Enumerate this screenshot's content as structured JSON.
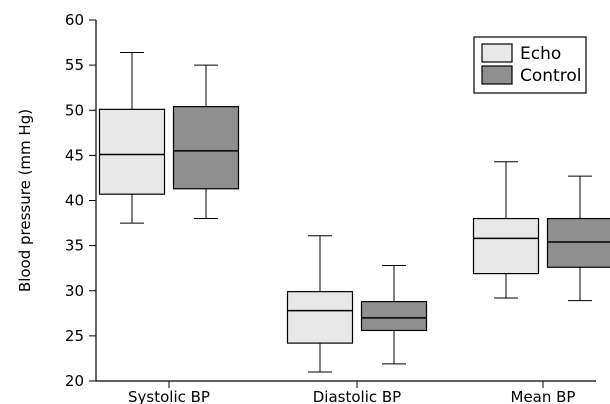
{
  "chart_data": {
    "type": "boxplot",
    "title": "",
    "xlabel": "",
    "ylabel": "Blood pressure (mm Hg)",
    "ylim": [
      20,
      60
    ],
    "yticks": [
      20,
      25,
      30,
      35,
      40,
      45,
      50,
      55,
      60
    ],
    "categories": [
      "Systolic BP",
      "Diastolic BP",
      "Mean BP"
    ],
    "legend_position": "top-right",
    "grid": false,
    "series": [
      {
        "name": "Echo",
        "color": "#e8e8e8",
        "boxes": [
          {
            "min": 37.5,
            "q1": 40.7,
            "median": 45.1,
            "q3": 50.1,
            "max": 56.4
          },
          {
            "min": 21.0,
            "q1": 24.2,
            "median": 27.8,
            "q3": 29.9,
            "max": 36.1
          },
          {
            "min": 29.2,
            "q1": 31.9,
            "median": 35.8,
            "q3": 38.0,
            "max": 44.3
          }
        ]
      },
      {
        "name": "Control",
        "color": "#8f8f8f",
        "boxes": [
          {
            "min": 38.0,
            "q1": 41.3,
            "median": 45.5,
            "q3": 50.4,
            "max": 55.0
          },
          {
            "min": 21.9,
            "q1": 25.6,
            "median": 27.0,
            "q3": 28.8,
            "max": 32.8
          },
          {
            "min": 28.9,
            "q1": 32.6,
            "median": 35.4,
            "q3": 38.0,
            "max": 42.7
          }
        ]
      }
    ]
  }
}
